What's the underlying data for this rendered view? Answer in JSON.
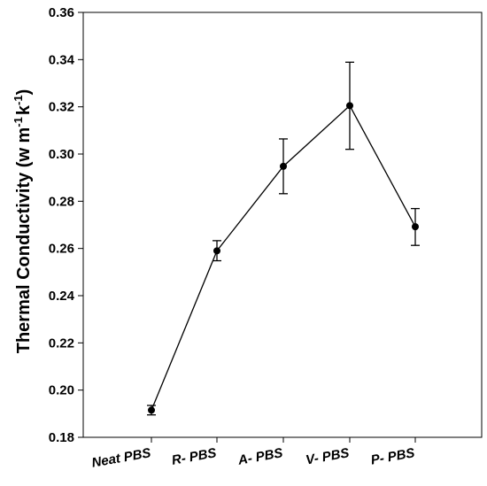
{
  "chart_data": {
    "type": "line",
    "categories": [
      "Neat PBS",
      "R- PBS",
      "A- PBS",
      "V- PBS",
      "P- PBS"
    ],
    "series": [
      {
        "values": [
          0.1915,
          0.259,
          0.2948,
          0.3205,
          0.2692
        ],
        "error_low": [
          0.1895,
          0.2548,
          0.2832,
          0.302,
          0.2613
        ],
        "error_high": [
          0.1935,
          0.2633,
          0.3064,
          0.3389,
          0.2769
        ]
      }
    ],
    "ylabel_main": "Thermal Conductivity (w m",
    "ylabel_sup1": "-1",
    "ylabel_mid": "k",
    "ylabel_sup2": "-1",
    "ylabel_close": ")",
    "ylim": [
      0.18,
      0.36
    ],
    "yticks": [
      "0.18",
      "0.20",
      "0.22",
      "0.24",
      "0.26",
      "0.28",
      "0.30",
      "0.32",
      "0.34",
      "0.36"
    ],
    "grid": false,
    "colors": {
      "line": "#000000",
      "marker": "#000000"
    }
  }
}
